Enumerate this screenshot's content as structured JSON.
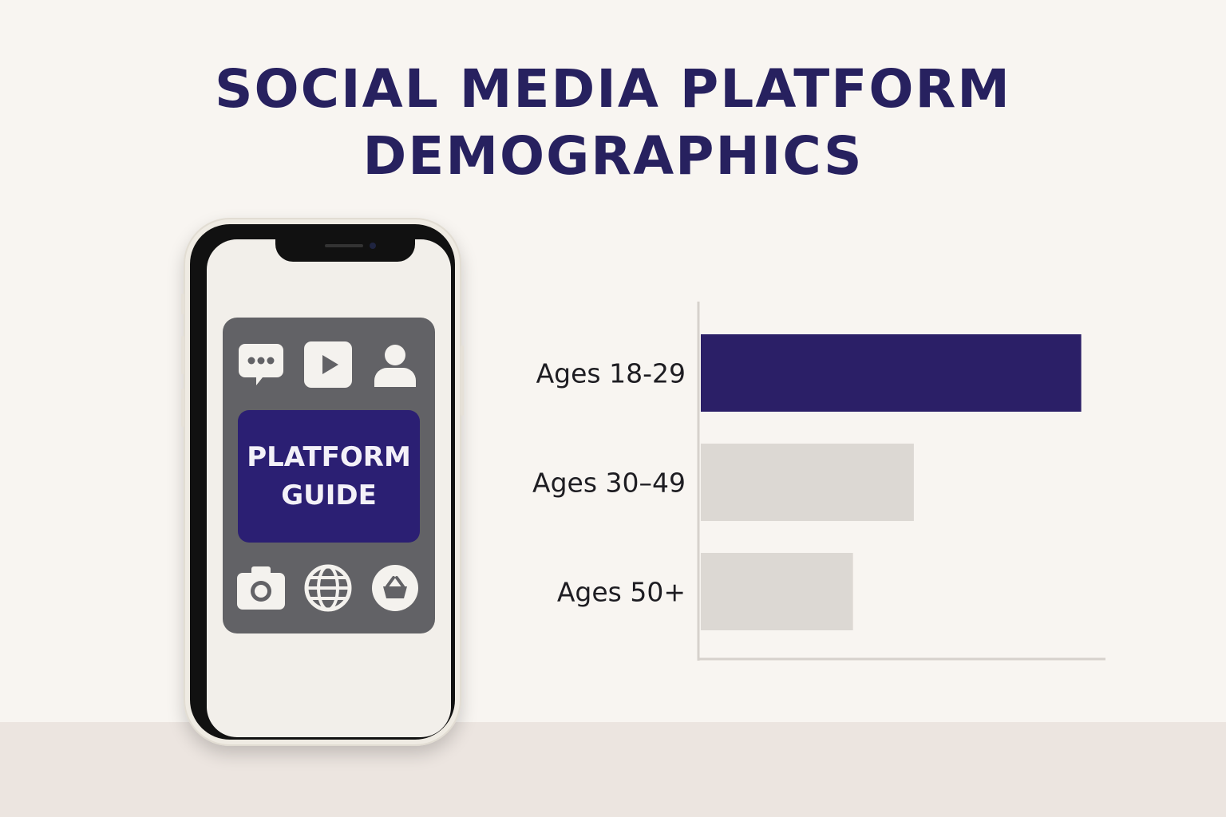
{
  "title": {
    "line1": "SOCIAL MEDIA PLATFORM",
    "line2": "DEMOGRAPHICS"
  },
  "phone": {
    "guide_line1": "PLATFORM",
    "guide_line2": "GUIDE",
    "top_icons": [
      "chat-bubble-icon",
      "play-button-icon",
      "user-icon"
    ],
    "bottom_icons": [
      "camera-icon",
      "globe-icon",
      "shopping-basket-icon"
    ]
  },
  "colors": {
    "primary": "#27215f",
    "bar_highlight": "#2b1f67",
    "bar_muted": "#dcd8d3",
    "panel": "#626266"
  },
  "chart_data": {
    "type": "bar",
    "orientation": "horizontal",
    "categories": [
      "Ages 18-29",
      "Ages 30–49",
      "Ages 50+"
    ],
    "values": [
      100,
      56,
      40
    ],
    "xlim": [
      0,
      107
    ],
    "highlight_index": 0,
    "title": "",
    "xlabel": "",
    "ylabel": "",
    "grid": false
  }
}
